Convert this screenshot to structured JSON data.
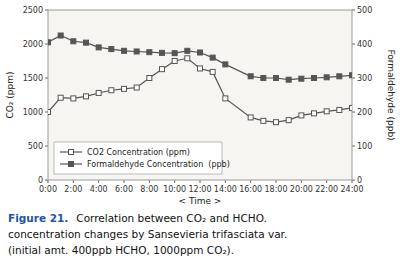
{
  "chart_data": {
    "type": "line",
    "x": [
      0,
      1,
      2,
      3,
      4,
      5,
      6,
      7,
      8,
      9,
      10,
      11,
      12,
      13,
      14,
      16,
      17,
      18,
      19,
      20,
      21,
      22,
      23,
      24
    ],
    "series": [
      {
        "name": "CO2 Concentration (ppm)",
        "color": "#555555",
        "marker": "open-square",
        "values": [
          1000,
          1210,
          1200,
          1230,
          1280,
          1320,
          1340,
          1360,
          1500,
          1630,
          1750,
          1790,
          1640,
          1590,
          1200,
          920,
          870,
          850,
          880,
          950,
          980,
          1010,
          1030,
          1060
        ]
      },
      {
        "name": "Formaldehyde Concentration  (ppb)",
        "color": "#555555",
        "marker": "square",
        "axis": "y2",
        "values": [
          405,
          425,
          408,
          404,
          390,
          385,
          380,
          378,
          376,
          374,
          373,
          380,
          375,
          360,
          340,
          305,
          300,
          300,
          295,
          298,
          300,
          302,
          305,
          308
        ]
      }
    ],
    "xlim": [
      0,
      24
    ],
    "xticks": [
      {
        "value": 0,
        "label": "0:00"
      },
      {
        "value": 2,
        "label": "2:00"
      },
      {
        "value": 4,
        "label": "4:00"
      },
      {
        "value": 6,
        "label": "6:00"
      },
      {
        "value": 8,
        "label": "8:00"
      },
      {
        "value": 10,
        "label": "10:00"
      },
      {
        "value": 12,
        "label": "12:00"
      },
      {
        "value": 14,
        "label": "14:00"
      },
      {
        "value": 16,
        "label": "16:00"
      },
      {
        "value": 18,
        "label": "18:00"
      },
      {
        "value": 20,
        "label": "20:00"
      },
      {
        "value": 22,
        "label": "22:00"
      },
      {
        "value": 24,
        "label": "24:00"
      }
    ],
    "ylim": [
      0,
      2500
    ],
    "yticks": [
      0,
      500,
      1000,
      1500,
      2000,
      2500
    ],
    "y2lim": [
      0,
      500
    ],
    "y2ticks": [
      0,
      100,
      200,
      300,
      400,
      500
    ],
    "x_label": "< Time >",
    "y_label": "CO₂ (ppm)",
    "y2_label": "Formaldehyde (ppb)",
    "annotations": [
      "Figure 21.",
      "Correlation between CO₂ and HCHO.",
      "concentration changes by Sansevieria trifasciata var.",
      "(initial amt. 400ppb HCHO, 1000ppm CO₂)."
    ],
    "legend": "lower left",
    "grid": false
  }
}
